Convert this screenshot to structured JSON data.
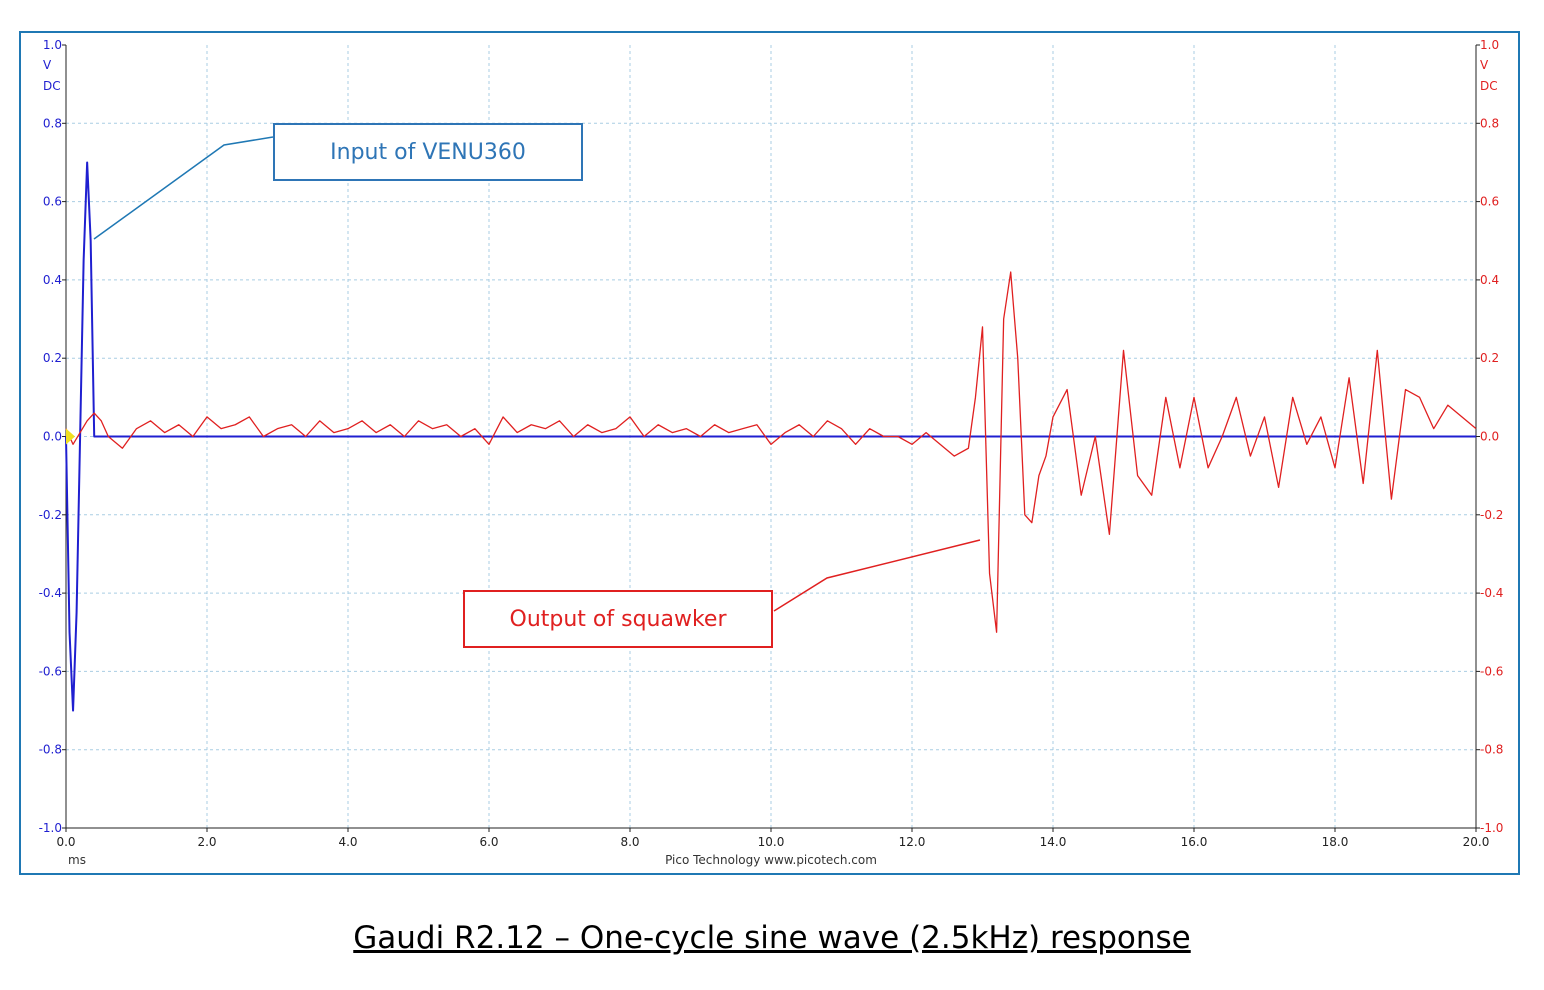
{
  "chart_data": {
    "type": "line",
    "title": "",
    "xlabel": "ms",
    "footer": "Pico Technology   www.picotech.com",
    "x_unit": "ms",
    "xlim": [
      0.0,
      20.0
    ],
    "x_ticks": [
      "0.0",
      "2.0",
      "4.0",
      "6.0",
      "8.0",
      "10.0",
      "12.0",
      "14.0",
      "16.0",
      "18.0",
      "20.0"
    ],
    "ylim": [
      -1.0,
      1.0
    ],
    "y_ticks": [
      "1.0",
      "0.8",
      "0.6",
      "0.4",
      "0.2",
      "0.0",
      "-0.2",
      "-0.4",
      "-0.6",
      "-0.8",
      "-1.0"
    ],
    "left_axis_unit": [
      "V",
      "DC"
    ],
    "right_axis_unit": [
      "V",
      "DC"
    ],
    "grid": true,
    "series": [
      {
        "name": "Input of VENU360",
        "color": "#1f1fd0",
        "x": [
          0.0,
          0.05,
          0.1,
          0.15,
          0.2,
          0.25,
          0.3,
          0.35,
          0.4,
          0.45,
          0.5,
          1.0,
          5.0,
          10.0,
          15.0,
          20.0
        ],
        "y": [
          0.0,
          -0.5,
          -0.7,
          -0.45,
          0.0,
          0.45,
          0.7,
          0.5,
          0.0,
          0.0,
          0.0,
          0.0,
          0.0,
          0.0,
          0.0,
          0.0
        ]
      },
      {
        "name": "Output of squawker",
        "color": "#e02020",
        "x": [
          0.0,
          0.1,
          0.2,
          0.3,
          0.4,
          0.5,
          0.6,
          0.8,
          1.0,
          1.2,
          1.4,
          1.6,
          1.8,
          2.0,
          2.2,
          2.4,
          2.6,
          2.8,
          3.0,
          3.2,
          3.4,
          3.6,
          3.8,
          4.0,
          4.2,
          4.4,
          4.6,
          4.8,
          5.0,
          5.2,
          5.4,
          5.6,
          5.8,
          6.0,
          6.2,
          6.4,
          6.6,
          6.8,
          7.0,
          7.2,
          7.4,
          7.6,
          7.8,
          8.0,
          8.2,
          8.4,
          8.6,
          8.8,
          9.0,
          9.2,
          9.4,
          9.6,
          9.8,
          10.0,
          10.2,
          10.4,
          10.6,
          10.8,
          11.0,
          11.2,
          11.4,
          11.6,
          11.8,
          12.0,
          12.2,
          12.4,
          12.6,
          12.8,
          12.9,
          13.0,
          13.1,
          13.2,
          13.3,
          13.4,
          13.5,
          13.6,
          13.7,
          13.8,
          13.9,
          14.0,
          14.2,
          14.4,
          14.6,
          14.8,
          15.0,
          15.2,
          15.4,
          15.6,
          15.8,
          16.0,
          16.2,
          16.4,
          16.6,
          16.8,
          17.0,
          17.2,
          17.4,
          17.6,
          17.8,
          18.0,
          18.2,
          18.4,
          18.6,
          18.8,
          19.0,
          19.2,
          19.4,
          19.6,
          19.8,
          20.0
        ],
        "y": [
          0.02,
          -0.02,
          0.01,
          0.04,
          0.06,
          0.04,
          0.0,
          -0.03,
          0.02,
          0.04,
          0.01,
          0.03,
          0.0,
          0.05,
          0.02,
          0.03,
          0.05,
          0.0,
          0.02,
          0.03,
          0.0,
          0.04,
          0.01,
          0.02,
          0.04,
          0.01,
          0.03,
          0.0,
          0.04,
          0.02,
          0.03,
          0.0,
          0.02,
          -0.02,
          0.05,
          0.01,
          0.03,
          0.02,
          0.04,
          0.0,
          0.03,
          0.01,
          0.02,
          0.05,
          0.0,
          0.03,
          0.01,
          0.02,
          0.0,
          0.03,
          0.01,
          0.02,
          0.03,
          -0.02,
          0.01,
          0.03,
          0.0,
          0.04,
          0.02,
          -0.02,
          0.02,
          0.0,
          0.0,
          -0.02,
          0.01,
          -0.02,
          -0.05,
          -0.03,
          0.1,
          0.28,
          -0.35,
          -0.5,
          0.3,
          0.42,
          0.2,
          -0.2,
          -0.22,
          -0.1,
          -0.05,
          0.05,
          0.12,
          -0.15,
          0.0,
          -0.25,
          0.22,
          -0.1,
          -0.15,
          0.1,
          -0.08,
          0.1,
          -0.08,
          0.0,
          0.1,
          -0.05,
          0.05,
          -0.13,
          0.1,
          -0.02,
          0.05,
          -0.08,
          0.15,
          -0.12,
          0.22,
          -0.16,
          0.12,
          0.1,
          0.02,
          0.08,
          0.05,
          0.02
        ]
      }
    ]
  },
  "annotations": {
    "input_label": "Input of VENU360",
    "output_label": "Output of squawker"
  },
  "caption": "Gaudi R2.12 – One-cycle sine wave (2.5kHz) response"
}
